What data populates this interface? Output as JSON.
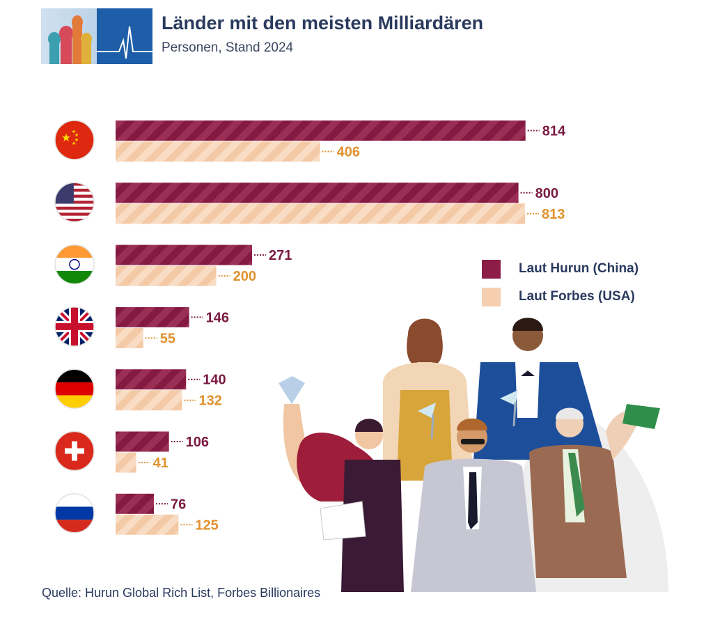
{
  "header": {
    "title": "Länder mit den meisten Milliardären",
    "subtitle": "Personen, Stand 2024"
  },
  "legend": {
    "hurun": "Laut Hurun (China)",
    "forbes": "Laut Forbes (USA)"
  },
  "source": "Quelle: Hurun Global Rich List, Forbes Billionaires",
  "colors": {
    "hurun": "#8c1d47",
    "forbes": "#f5cfb0",
    "hurun_label": "#7a1a40",
    "forbes_label": "#e0922e"
  },
  "chart_data": {
    "type": "bar",
    "orientation": "horizontal",
    "title": "Länder mit den meisten Milliardären",
    "subtitle": "Personen, Stand 2024",
    "categories": [
      "China",
      "USA",
      "Indien",
      "Großbritannien",
      "Deutschland",
      "Schweiz",
      "Russland"
    ],
    "category_icons": [
      "flag-china",
      "flag-usa",
      "flag-india",
      "flag-uk",
      "flag-germany",
      "flag-switzerland",
      "flag-russia"
    ],
    "series": [
      {
        "name": "Laut Hurun (China)",
        "values": [
          814,
          800,
          271,
          146,
          140,
          106,
          76
        ]
      },
      {
        "name": "Laut Forbes (USA)",
        "values": [
          406,
          813,
          200,
          55,
          132,
          41,
          125
        ]
      }
    ],
    "xlim": [
      0,
      813
    ],
    "grid": false,
    "legend_position": "right"
  }
}
